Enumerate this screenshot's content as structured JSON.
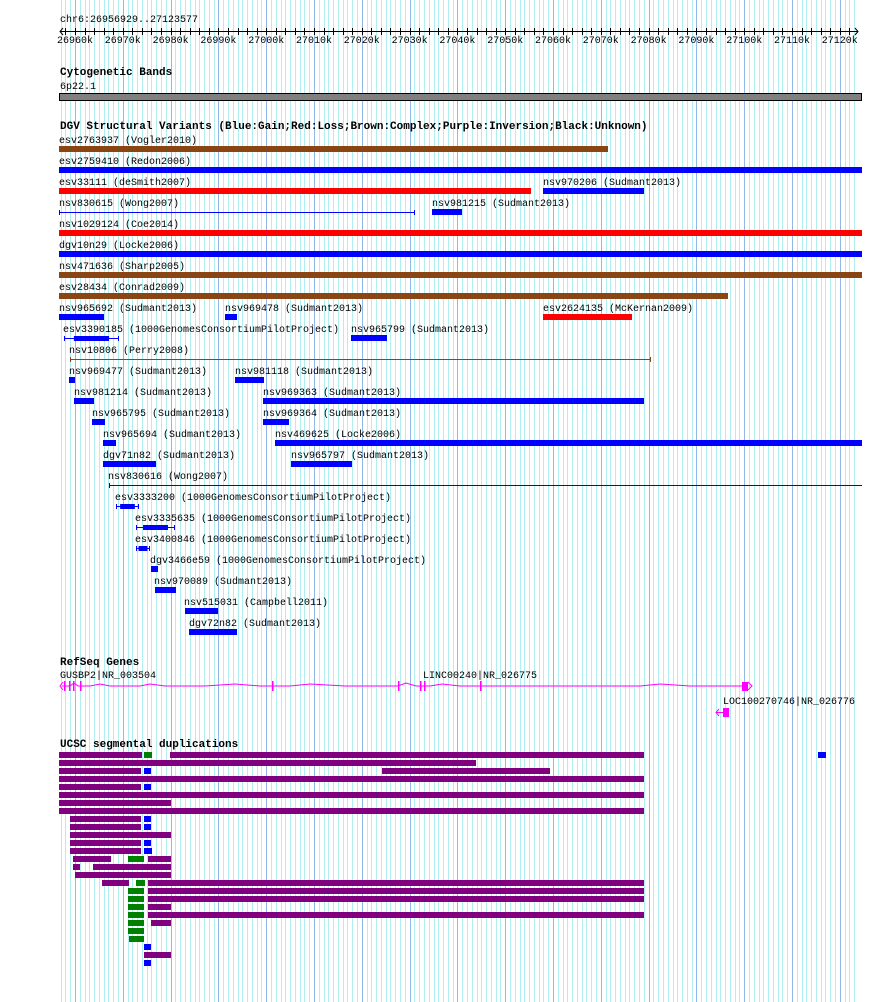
{
  "region": "chr6:26956929..27123577",
  "ruler": {
    "labels": [
      "26960k",
      "26970k",
      "26980k",
      "26990k",
      "27000k",
      "27010k",
      "27020k",
      "27030k",
      "27040k",
      "27050k",
      "27060k",
      "27070k",
      "27080k",
      "27090k",
      "27100k",
      "27110k",
      "27120k"
    ]
  },
  "colors": {
    "gain": "#0000ff",
    "loss": "#ff0000",
    "complex": "#8b4513",
    "seg_purple": "#800080",
    "seg_green": "#008000",
    "seg_blue": "#0000ff",
    "gene": "#ff00ff",
    "band": "#808080",
    "grid_minor": "#b0eef0",
    "grid_major": "#90b8e8"
  },
  "tracks": {
    "cytoband": {
      "title": "Cytogenetic Bands",
      "band": "6p22.1"
    },
    "dgv": {
      "title": "DGV Structural Variants (Blue:Gain;Red:Loss;Brown:Complex;Purple:Inversion;Black:Unknown)",
      "items": [
        {
          "label": "esv2763937 (Vogler2010)",
          "type": "complex"
        },
        {
          "label": "esv2759410 (Redon2006)",
          "type": "gain"
        },
        {
          "label": "esv33111 (deSmith2007)",
          "type": "loss"
        },
        {
          "label": "nsv970206 (Sudmant2013)",
          "type": "gain"
        },
        {
          "label": "nsv830615 (Wong2007)",
          "type": "gain"
        },
        {
          "label": "nsv981215 (Sudmant2013)",
          "type": "gain"
        },
        {
          "label": "nsv1029124 (Coe2014)",
          "type": "loss"
        },
        {
          "label": "dgv10n29 (Locke2006)",
          "type": "gain"
        },
        {
          "label": "nsv471636 (Sharp2005)",
          "type": "complex"
        },
        {
          "label": "esv28434 (Conrad2009)",
          "type": "complex"
        },
        {
          "label": "nsv965692 (Sudmant2013)",
          "type": "gain"
        },
        {
          "label": "nsv969478 (Sudmant2013)",
          "type": "gain"
        },
        {
          "label": "esv2624135 (McKernan2009)",
          "type": "loss"
        },
        {
          "label": "esv3390185 (1000GenomesConsortiumPilotProject)",
          "type": "gain"
        },
        {
          "label": "nsv965799 (Sudmant2013)",
          "type": "gain"
        },
        {
          "label": "nsv10806 (Perry2008)",
          "type": "complex"
        },
        {
          "label": "nsv969477 (Sudmant2013)",
          "type": "gain"
        },
        {
          "label": "nsv981118 (Sudmant2013)",
          "type": "gain"
        },
        {
          "label": "nsv981214 (Sudmant2013)",
          "type": "gain"
        },
        {
          "label": "nsv969363 (Sudmant2013)",
          "type": "gain"
        },
        {
          "label": "nsv965795 (Sudmant2013)",
          "type": "gain"
        },
        {
          "label": "nsv969364 (Sudmant2013)",
          "type": "gain"
        },
        {
          "label": "nsv965694 (Sudmant2013)",
          "type": "gain"
        },
        {
          "label": "nsv469625 (Locke2006)",
          "type": "gain"
        },
        {
          "label": "dgv71n82 (Sudmant2013)",
          "type": "gain"
        },
        {
          "label": "nsv965797 (Sudmant2013)",
          "type": "gain"
        },
        {
          "label": "nsv830616 (Wong2007)",
          "type": "gain"
        },
        {
          "label": "esv3333200 (1000GenomesConsortiumPilotProject)",
          "type": "gain"
        },
        {
          "label": "esv3335635 (1000GenomesConsortiumPilotProject)",
          "type": "gain"
        },
        {
          "label": "esv3400846 (1000GenomesConsortiumPilotProject)",
          "type": "gain"
        },
        {
          "label": "dgv3466e59 (1000GenomesConsortiumPilotProject)",
          "type": "gain"
        },
        {
          "label": "nsv970089 (Sudmant2013)",
          "type": "gain"
        },
        {
          "label": "nsv515031 (Campbell2011)",
          "type": "gain"
        },
        {
          "label": "dgv72n82 (Sudmant2013)",
          "type": "gain"
        }
      ]
    },
    "refseq": {
      "title": "RefSeq Genes",
      "genes": [
        {
          "label": "GUSBP2|NR_003504"
        },
        {
          "label": "LINC00240|NR_026775"
        },
        {
          "label": "LOC100270746|NR_026776"
        }
      ]
    },
    "segdup": {
      "title": "UCSC segmental duplications"
    }
  }
}
